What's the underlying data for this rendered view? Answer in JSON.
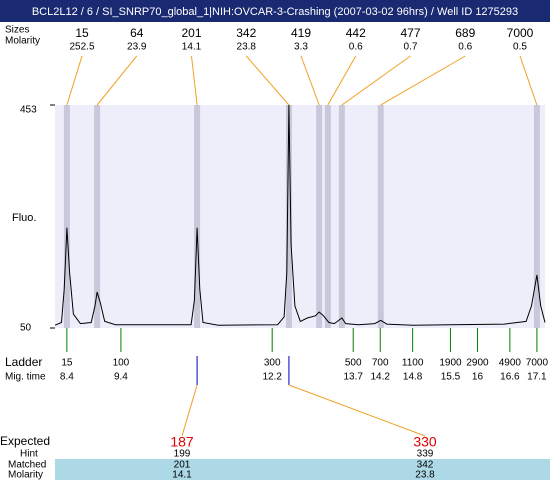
{
  "chart_data": {
    "type": "line",
    "title": "BCL2L12 / 6 / SI_SNRP70_global_1|NIH:OVCAR-3-Crashing (2007-03-02 96hrs) / Well ID 1275293",
    "ylabel": "Fluo.",
    "xlim": [
      8.18,
      17.25
    ],
    "ylim": [
      50,
      453
    ],
    "yticks": [
      50,
      453
    ],
    "series": [
      {
        "color": "#000000",
        "x": [
          8.18,
          8.3,
          8.35,
          8.4,
          8.45,
          8.52,
          8.65,
          8.85,
          8.92,
          8.96,
          9.02,
          9.1,
          9.3,
          10.7,
          10.76,
          10.81,
          10.86,
          10.92,
          11.2,
          12.3,
          12.42,
          12.47,
          12.51,
          12.55,
          12.62,
          12.72,
          12.85,
          13.0,
          13.07,
          13.15,
          13.25,
          13.35,
          13.49,
          13.56,
          13.8,
          14.1,
          14.21,
          14.32,
          14.8,
          15.5,
          16.5,
          16.9,
          17.0,
          17.1,
          17.17,
          17.25
        ],
        "values": [
          55,
          60,
          120,
          231,
          150,
          75,
          58,
          60,
          90,
          115,
          95,
          62,
          56,
          56,
          100,
          231,
          120,
          60,
          55,
          56,
          70,
          150,
          453,
          200,
          90,
          62,
          68,
          72,
          79,
          72,
          60,
          58,
          68,
          58,
          56,
          58,
          64,
          57,
          55,
          56,
          57,
          62,
          90,
          146,
          90,
          60
        ]
      }
    ],
    "peaks": {
      "sizes_label": "Sizes",
      "molarity_label": "Molarity",
      "band_color": "#c8c8da",
      "sizes": [
        15,
        64,
        201,
        342,
        419,
        442,
        477,
        689,
        7000
      ],
      "molarity": [
        252.5,
        23.9,
        14.1,
        23.8,
        3.3,
        0.6,
        0.7,
        0.6,
        0.5
      ],
      "times": [
        8.4,
        8.96,
        10.81,
        12.51,
        13.07,
        13.23,
        13.49,
        14.21,
        17.1
      ]
    },
    "ladder": {
      "label": "Ladder",
      "time_label": "Mig. time",
      "sizes": [
        15,
        100,
        300,
        500,
        700,
        1100,
        1900,
        2900,
        4900,
        7000
      ],
      "times": [
        8.4,
        9.4,
        12.2,
        13.7,
        14.2,
        14.8,
        15.5,
        16,
        16.6,
        17.1
      ]
    },
    "expected": {
      "label": "Expected",
      "values": [
        187,
        330
      ],
      "hint_label": "Hint",
      "hint": [
        199,
        339
      ],
      "matched_label": "Matched",
      "matched": [
        201,
        342
      ],
      "molarity_label": "Molarity",
      "molarity": [
        14.1,
        23.8
      ],
      "times": [
        10.81,
        12.51
      ]
    }
  }
}
